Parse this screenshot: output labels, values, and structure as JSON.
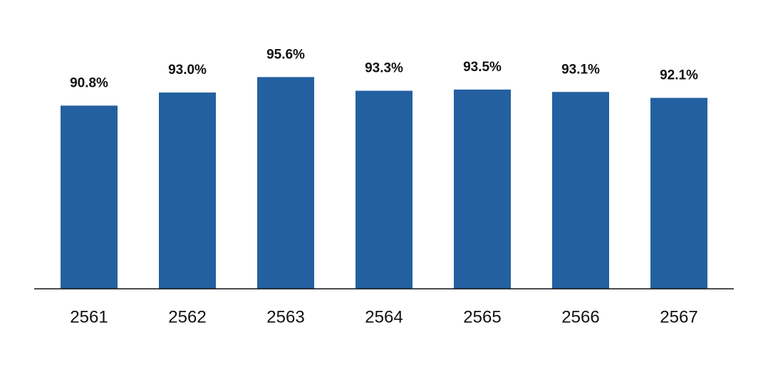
{
  "chart_data": {
    "type": "bar",
    "categories": [
      "2561",
      "2562",
      "2563",
      "2564",
      "2565",
      "2566",
      "2567"
    ],
    "values": [
      90.8,
      93.0,
      95.6,
      93.3,
      93.5,
      93.1,
      92.1
    ],
    "value_labels": [
      "90.8%",
      "93.0%",
      "95.6%",
      "93.3%",
      "93.5%",
      "93.1%",
      "92.1%"
    ],
    "color": "#2360a0",
    "ylim": [
      60,
      96
    ]
  }
}
